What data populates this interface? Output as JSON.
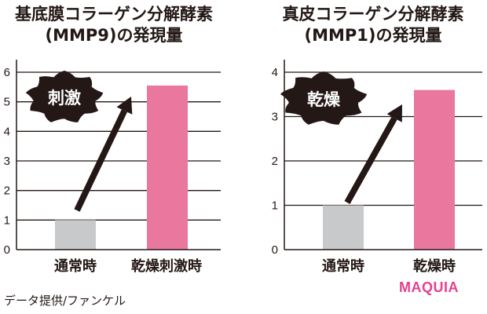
{
  "charts": {
    "left": {
      "title_line1": "基底膜コラーゲン分解酵素",
      "title_line2": "(MMP9)の発現量",
      "burst_label": "刺激",
      "categories": [
        "通常時",
        "乾燥刺激時"
      ],
      "yticks": [
        "0",
        "1",
        "2",
        "3",
        "4",
        "5",
        "6"
      ]
    },
    "right": {
      "title_line1": "真皮コラーゲン分解酵素",
      "title_line2": "(MMP1)の発現量",
      "burst_label": "乾燥",
      "categories": [
        "通常時",
        "乾燥時"
      ],
      "yticks": [
        "0",
        "1",
        "2",
        "3",
        "4"
      ]
    }
  },
  "footer": {
    "credit": "データ提供/ファンケル",
    "logo": "MAQUIA"
  },
  "colors": {
    "normal_bar": "#c8c9ca",
    "stimulus_bar": "#e9779e",
    "axis": "#231815",
    "burst": "#231815",
    "logo": "#e4418f"
  },
  "chart_data": [
    {
      "type": "bar",
      "title": "基底膜コラーゲン分解酵素(MMP9)の発現量",
      "categories": [
        "通常時",
        "乾燥刺激時"
      ],
      "values": [
        1.0,
        5.55
      ],
      "xlabel": "",
      "ylabel": "",
      "ylim": [
        0,
        6
      ],
      "yticks": [
        0,
        1,
        2,
        3,
        4,
        5,
        6
      ],
      "grid": true,
      "annotations": [
        "刺激 (arrow from 通常時 to 乾燥刺激時)"
      ],
      "bar_colors": [
        "#c8c9ca",
        "#e9779e"
      ]
    },
    {
      "type": "bar",
      "title": "真皮コラーゲン分解酵素(MMP1)の発現量",
      "categories": [
        "通常時",
        "乾燥時"
      ],
      "values": [
        1.0,
        3.6
      ],
      "xlabel": "",
      "ylabel": "",
      "ylim": [
        0,
        4
      ],
      "yticks": [
        0,
        1,
        2,
        3,
        4
      ],
      "grid": true,
      "annotations": [
        "乾燥 (arrow from 通常時 to 乾燥時)"
      ],
      "bar_colors": [
        "#c8c9ca",
        "#e9779e"
      ]
    }
  ]
}
